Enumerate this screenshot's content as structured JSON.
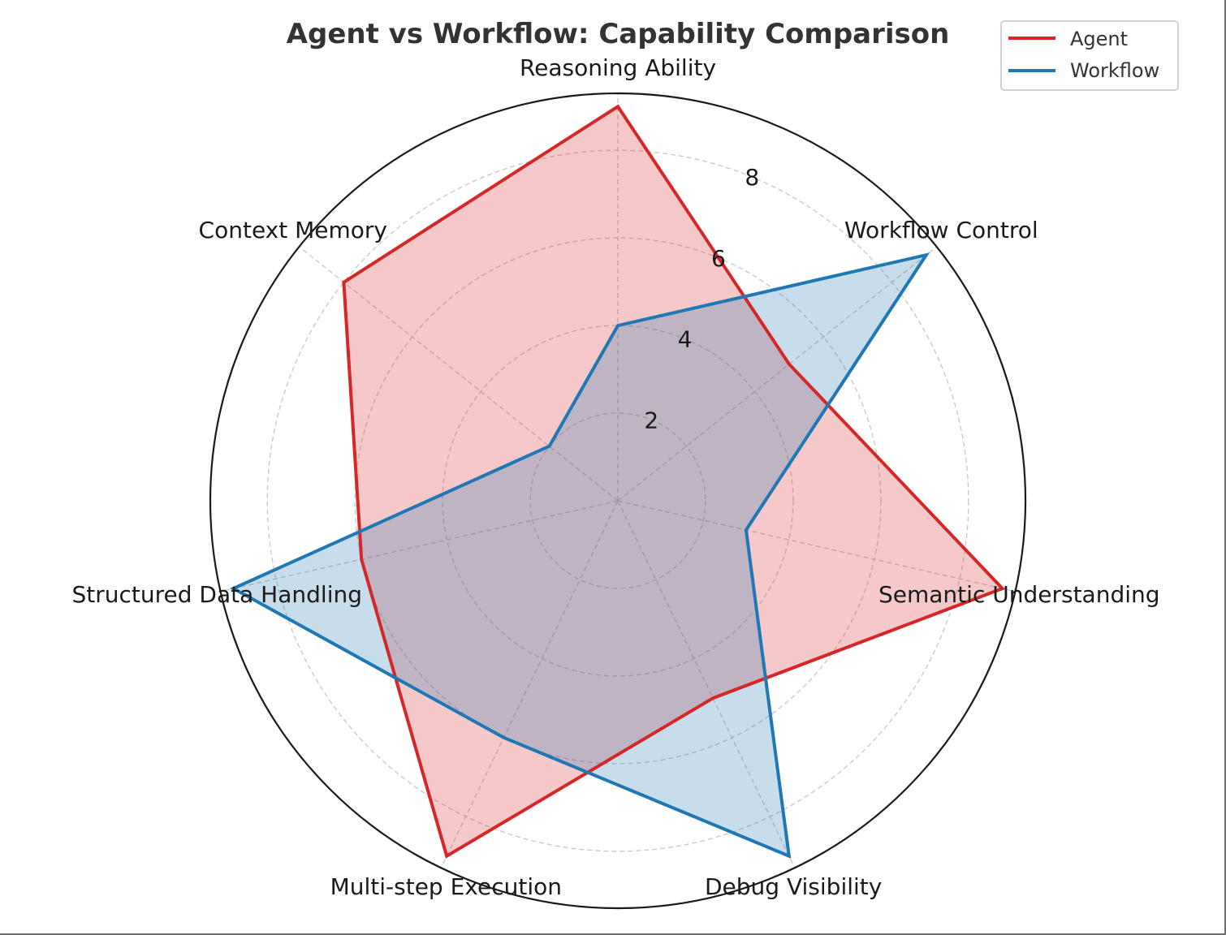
{
  "chart_data": {
    "type": "radar",
    "title": "Agent vs Workflow: Capability Comparison",
    "categories": [
      "Reasoning Ability",
      "Workflow Control",
      "Semantic Understanding",
      "Debug Visibility",
      "Multi-step Execution",
      "Structured Data Handling",
      "Context Memory"
    ],
    "series": [
      {
        "name": "Agent",
        "values": [
          9,
          5,
          9,
          5,
          9,
          6,
          8
        ],
        "color": "#d62728"
      },
      {
        "name": "Workflow",
        "values": [
          4,
          9,
          3,
          9,
          6,
          9,
          2
        ],
        "color": "#1f77b4"
      }
    ],
    "radial_ticks": [
      2,
      4,
      6,
      8
    ],
    "radial_tick_labels": [
      "2",
      "4",
      "6",
      "8"
    ],
    "rlim": [
      0,
      9.3
    ],
    "grid": true,
    "legend_position": "upper right"
  },
  "legend": {
    "items": [
      {
        "label": "Agent",
        "color": "#d62728"
      },
      {
        "label": "Workflow",
        "color": "#1f77b4"
      }
    ]
  }
}
